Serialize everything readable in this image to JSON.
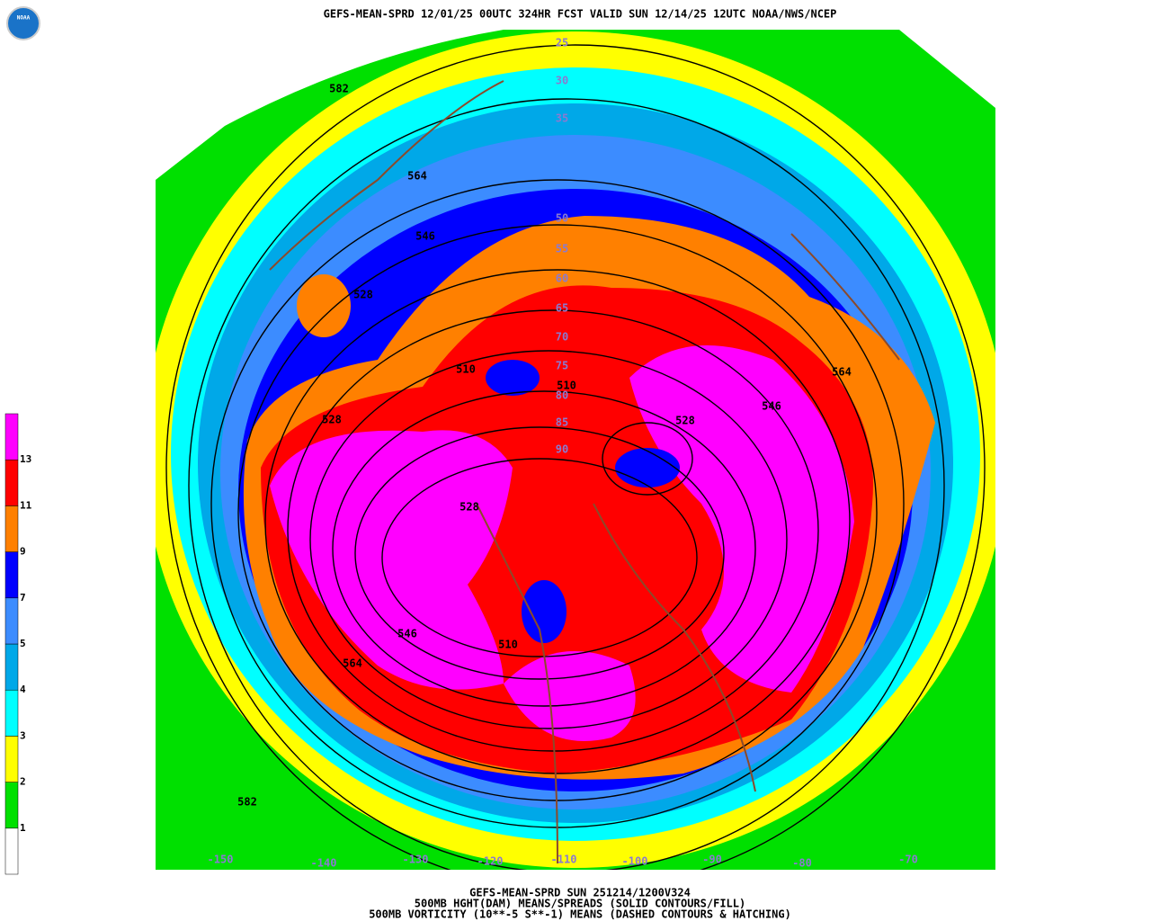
{
  "header": {
    "title": "GEFS-MEAN-SPRD 12/01/25 00UTC 324HR FCST VALID SUN 12/14/25 12UTC NOAA/NWS/NCEP",
    "logo": "NOAA"
  },
  "colorbar": {
    "levels": [
      1,
      2,
      3,
      4,
      5,
      7,
      9,
      11,
      13
    ],
    "colors": [
      "#ffffff",
      "#00e000",
      "#ffff00",
      "#00ffff",
      "#00a8e8",
      "#3c8cff",
      "#0000ff",
      "#ff8000",
      "#ff0000",
      "#ff00ff"
    ]
  },
  "map": {
    "height_contour_labels": [
      "582",
      "564",
      "546",
      "528",
      "510",
      "510",
      "528",
      "546",
      "564",
      "528",
      "528",
      "546",
      "564",
      "510",
      "582"
    ],
    "latitude_labels": [
      "25",
      "30",
      "35",
      "50",
      "55",
      "60",
      "65",
      "70",
      "75",
      "80",
      "85",
      "90"
    ],
    "longitude_labels": [
      "-150",
      "-140",
      "-130",
      "-120",
      "-110",
      "-100",
      "-90",
      "-80",
      "-70"
    ]
  },
  "footer": {
    "lines": [
      "GEFS-MEAN-SPRD SUN 251214/1200V324",
      "500MB HGHT(DAM) MEANS/SPREADS (SOLID CONTOURS/FILL)",
      "500MB VORTICITY (10**-5 S**-1) MEANS (DASHED CONTOURS & HATCHING)"
    ]
  }
}
